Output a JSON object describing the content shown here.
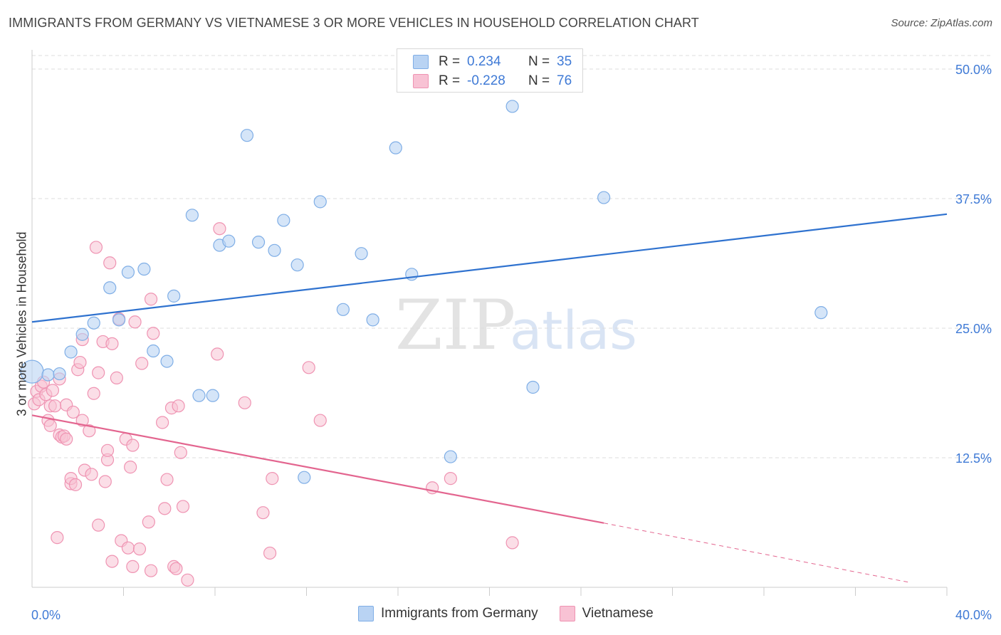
{
  "title": "IMMIGRANTS FROM GERMANY VS VIETNAMESE 3 OR MORE VEHICLES IN HOUSEHOLD CORRELATION CHART",
  "source": "Source: ZipAtlas.com",
  "watermark": {
    "zip": "ZIP",
    "atlas": "atlas"
  },
  "legend": {
    "r_label": "R =",
    "n_label": "N =",
    "series": [
      {
        "r": "0.234",
        "n": "35"
      },
      {
        "r": "-0.228",
        "n": "76"
      }
    ]
  },
  "colors": {
    "germany_fill": "#b9d3f3",
    "germany_stroke": "#7faee6",
    "germany_line": "#2f72cf",
    "viet_fill": "#f8c2d4",
    "viet_stroke": "#ef93b2",
    "viet_line": "#e3658f",
    "axis_text": "#3f7ad6",
    "grid": "#dddddd"
  },
  "chart_data": {
    "type": "scatter",
    "title": "IMMIGRANTS FROM GERMANY VS VIETNAMESE 3 OR MORE VEHICLES IN HOUSEHOLD CORRELATION CHART",
    "xlabel": "",
    "ylabel": "3 or more Vehicles in Household",
    "xlim": [
      0,
      40
    ],
    "ylim": [
      0,
      52
    ],
    "x_tick_labels": [
      "0.0%",
      "40.0%"
    ],
    "y_ticks": [
      12.5,
      25.0,
      37.5,
      50.0
    ],
    "y_tick_labels": [
      "12.5%",
      "25.0%",
      "37.5%",
      "50.0%"
    ],
    "series": [
      {
        "name": "Immigrants from Germany",
        "r": 0.234,
        "n": 35,
        "points": [
          {
            "x": 0.0,
            "y": 20.8,
            "big": true
          },
          {
            "x": 0.7,
            "y": 20.5
          },
          {
            "x": 1.2,
            "y": 20.6
          },
          {
            "x": 1.7,
            "y": 22.7
          },
          {
            "x": 2.2,
            "y": 24.4
          },
          {
            "x": 2.7,
            "y": 25.5
          },
          {
            "x": 3.4,
            "y": 28.9
          },
          {
            "x": 3.8,
            "y": 25.8
          },
          {
            "x": 4.2,
            "y": 30.4
          },
          {
            "x": 4.9,
            "y": 30.7
          },
          {
            "x": 5.3,
            "y": 22.8
          },
          {
            "x": 5.9,
            "y": 21.8
          },
          {
            "x": 6.2,
            "y": 28.1
          },
          {
            "x": 7.0,
            "y": 35.9
          },
          {
            "x": 7.3,
            "y": 18.5
          },
          {
            "x": 7.9,
            "y": 18.5
          },
          {
            "x": 8.2,
            "y": 33.0
          },
          {
            "x": 8.6,
            "y": 33.4
          },
          {
            "x": 9.4,
            "y": 43.6
          },
          {
            "x": 9.9,
            "y": 33.3
          },
          {
            "x": 10.6,
            "y": 32.5
          },
          {
            "x": 11.0,
            "y": 35.4
          },
          {
            "x": 11.6,
            "y": 31.1
          },
          {
            "x": 11.9,
            "y": 10.6
          },
          {
            "x": 12.6,
            "y": 37.2
          },
          {
            "x": 13.6,
            "y": 26.8
          },
          {
            "x": 14.4,
            "y": 32.2
          },
          {
            "x": 14.9,
            "y": 25.8
          },
          {
            "x": 15.9,
            "y": 42.4
          },
          {
            "x": 16.6,
            "y": 30.2
          },
          {
            "x": 18.3,
            "y": 12.6
          },
          {
            "x": 21.0,
            "y": 46.4
          },
          {
            "x": 21.9,
            "y": 19.3
          },
          {
            "x": 25.0,
            "y": 37.6
          },
          {
            "x": 34.5,
            "y": 26.5
          }
        ],
        "trend": {
          "x": [
            0,
            40
          ],
          "y": [
            25.6,
            36.0
          ]
        }
      },
      {
        "name": "Vietnamese",
        "r": -0.228,
        "n": 76,
        "points": [
          {
            "x": 0.1,
            "y": 17.7
          },
          {
            "x": 0.2,
            "y": 18.9
          },
          {
            "x": 0.3,
            "y": 18.1
          },
          {
            "x": 0.4,
            "y": 19.4
          },
          {
            "x": 0.5,
            "y": 19.8
          },
          {
            "x": 0.6,
            "y": 18.6
          },
          {
            "x": 0.7,
            "y": 16.1
          },
          {
            "x": 0.8,
            "y": 17.5
          },
          {
            "x": 0.8,
            "y": 15.6
          },
          {
            "x": 0.9,
            "y": 19.0
          },
          {
            "x": 1.0,
            "y": 17.5
          },
          {
            "x": 1.1,
            "y": 4.8
          },
          {
            "x": 1.2,
            "y": 14.7
          },
          {
            "x": 1.2,
            "y": 20.1
          },
          {
            "x": 1.3,
            "y": 14.5
          },
          {
            "x": 1.4,
            "y": 14.6
          },
          {
            "x": 1.5,
            "y": 17.6
          },
          {
            "x": 1.5,
            "y": 14.3
          },
          {
            "x": 1.7,
            "y": 10.0
          },
          {
            "x": 1.7,
            "y": 10.5
          },
          {
            "x": 1.8,
            "y": 16.9
          },
          {
            "x": 1.9,
            "y": 9.9
          },
          {
            "x": 2.0,
            "y": 21.0
          },
          {
            "x": 2.1,
            "y": 21.7
          },
          {
            "x": 2.2,
            "y": 16.1
          },
          {
            "x": 2.2,
            "y": 23.9
          },
          {
            "x": 2.3,
            "y": 11.3
          },
          {
            "x": 2.5,
            "y": 15.1
          },
          {
            "x": 2.6,
            "y": 10.9
          },
          {
            "x": 2.7,
            "y": 18.7
          },
          {
            "x": 2.8,
            "y": 32.8
          },
          {
            "x": 2.9,
            "y": 6.0
          },
          {
            "x": 2.9,
            "y": 20.7
          },
          {
            "x": 3.1,
            "y": 23.7
          },
          {
            "x": 3.2,
            "y": 10.2
          },
          {
            "x": 3.3,
            "y": 12.3
          },
          {
            "x": 3.3,
            "y": 13.2
          },
          {
            "x": 3.4,
            "y": 31.3
          },
          {
            "x": 3.5,
            "y": 2.5
          },
          {
            "x": 3.5,
            "y": 23.5
          },
          {
            "x": 3.7,
            "y": 20.2
          },
          {
            "x": 3.8,
            "y": 25.9
          },
          {
            "x": 3.9,
            "y": 4.5
          },
          {
            "x": 4.1,
            "y": 14.3
          },
          {
            "x": 4.2,
            "y": 3.8
          },
          {
            "x": 4.3,
            "y": 11.6
          },
          {
            "x": 4.4,
            "y": 2.0
          },
          {
            "x": 4.4,
            "y": 13.7
          },
          {
            "x": 4.5,
            "y": 25.6
          },
          {
            "x": 4.7,
            "y": 3.7
          },
          {
            "x": 4.8,
            "y": 21.6
          },
          {
            "x": 5.1,
            "y": 6.3
          },
          {
            "x": 5.2,
            "y": 1.6
          },
          {
            "x": 5.2,
            "y": 27.8
          },
          {
            "x": 5.3,
            "y": 24.5
          },
          {
            "x": 5.7,
            "y": 15.9
          },
          {
            "x": 5.8,
            "y": 7.6
          },
          {
            "x": 5.9,
            "y": 10.4
          },
          {
            "x": 6.1,
            "y": 17.3
          },
          {
            "x": 6.2,
            "y": 2.0
          },
          {
            "x": 6.3,
            "y": 1.8
          },
          {
            "x": 6.4,
            "y": 17.5
          },
          {
            "x": 6.5,
            "y": 13.0
          },
          {
            "x": 6.6,
            "y": 7.8
          },
          {
            "x": 6.8,
            "y": 0.7
          },
          {
            "x": 8.2,
            "y": 34.6
          },
          {
            "x": 8.1,
            "y": 22.5
          },
          {
            "x": 9.3,
            "y": 17.8
          },
          {
            "x": 10.1,
            "y": 7.2
          },
          {
            "x": 10.4,
            "y": 3.3
          },
          {
            "x": 10.5,
            "y": 10.5
          },
          {
            "x": 12.1,
            "y": 21.2
          },
          {
            "x": 12.6,
            "y": 16.1
          },
          {
            "x": 17.5,
            "y": 9.6
          },
          {
            "x": 18.3,
            "y": 10.5
          },
          {
            "x": 21.0,
            "y": 4.3
          }
        ],
        "trend": {
          "x": [
            0,
            25.0
          ],
          "y": [
            16.6,
            6.2
          ]
        },
        "trend_extension": {
          "x": [
            25.0,
            38.3
          ],
          "y": [
            6.2,
            0.5
          ]
        }
      }
    ]
  }
}
